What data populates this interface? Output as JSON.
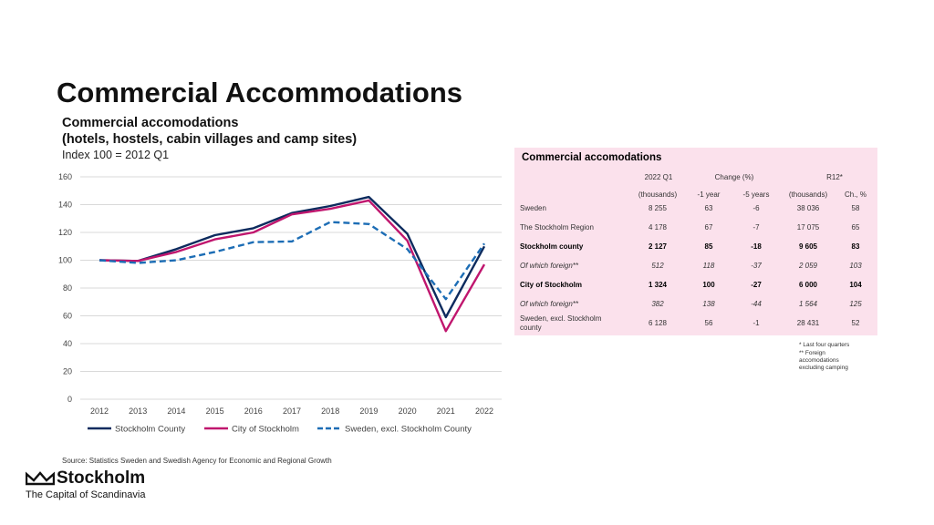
{
  "header": {
    "title": "Commercial Accommodations",
    "subtitle_line1": "Commercial accomodations",
    "subtitle_line2": "(hotels, hostels, cabin villages and camp sites)",
    "subtitle_line3": "Index 100 = 2012 Q1"
  },
  "chart_data": {
    "type": "line",
    "x": [
      "2012",
      "2013",
      "2014",
      "2015",
      "2016",
      "2017",
      "2018",
      "2019",
      "2020",
      "2021",
      "2022"
    ],
    "ylim": [
      0,
      160
    ],
    "yticks": [
      "0",
      "20",
      "40",
      "60",
      "80",
      "100",
      "120",
      "140",
      "160"
    ],
    "grid": true,
    "legend": "bottom",
    "series": [
      {
        "name": "Stockholm County",
        "color": "#0d2b5e",
        "dash": "solid",
        "values": [
          100,
          99.5,
          108,
          118,
          123,
          134,
          139,
          145.5,
          119,
          59,
          110
        ]
      },
      {
        "name": "City of Stockholm",
        "color": "#c0166e",
        "dash": "solid",
        "values": [
          100,
          99.5,
          106,
          115,
          120,
          133,
          137,
          143,
          114,
          49,
          97
        ]
      },
      {
        "name": "Sweden, excl. Stockholm County",
        "color": "#1c6db5",
        "dash": "dashed",
        "values": [
          100,
          98,
          100,
          106,
          113,
          113.5,
          127.5,
          126,
          108,
          72,
          112
        ]
      }
    ]
  },
  "table": {
    "title": "Commercial accomodations",
    "group_headers": [
      "2022 Q1",
      "Change (%)",
      "R12*"
    ],
    "sub_headers": [
      "(thousands)",
      "-1 year",
      "-5 years",
      "(thousands)",
      "Ch., %"
    ],
    "rows": [
      {
        "label": "Sweden",
        "values": [
          "8 255",
          "63",
          "-6",
          "38 036",
          "58"
        ]
      },
      {
        "label": "The Stockholm Region",
        "values": [
          "4 178",
          "67",
          "-7",
          "17 075",
          "65"
        ]
      },
      {
        "label": "Stockholm county",
        "values": [
          "2 127",
          "85",
          "-18",
          "9 605",
          "83"
        ]
      },
      {
        "label": "Of which foreign**",
        "values": [
          "512",
          "118",
          "-37",
          "2 059",
          "103"
        ]
      },
      {
        "label": "City of Stockholm",
        "values": [
          "1 324",
          "100",
          "-27",
          "6 000",
          "104"
        ]
      },
      {
        "label": "Of which foreign**",
        "values": [
          "382",
          "138",
          "-44",
          "1 564",
          "125"
        ]
      },
      {
        "label": "Sweden, excl. Stockholm county",
        "values": [
          "6 128",
          "56",
          "-1",
          "28 431",
          "52"
        ]
      }
    ],
    "footnote1": "* Last four quarters",
    "footnote2": "** Foreign accomodations excluding camping"
  },
  "source": "Source: Statistics Sweden and Swedish Agency for Economic and Regional Growth",
  "logo": {
    "name": "Stockholm",
    "tagline": "The Capital of Scandinavia"
  }
}
